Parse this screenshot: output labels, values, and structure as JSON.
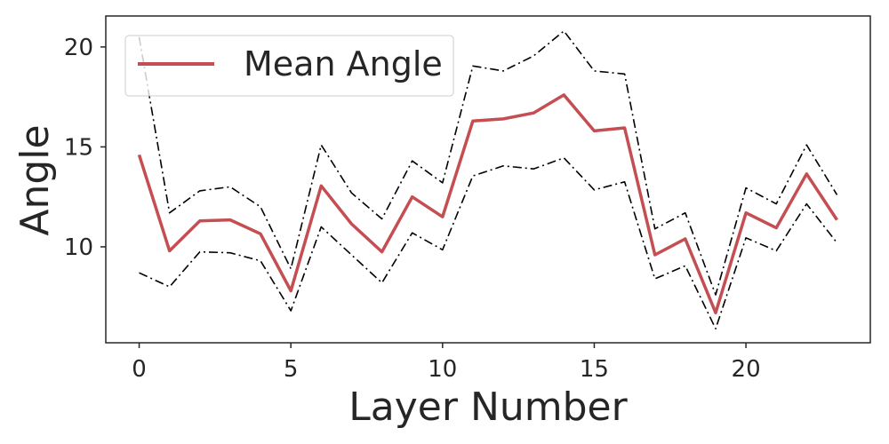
{
  "chart_data": {
    "type": "line",
    "title": "",
    "xlabel": "Layer Number",
    "ylabel": "Angle",
    "xlim": [
      -1.1,
      24.1
    ],
    "ylim": [
      5.2,
      21.55
    ],
    "xticks": [
      0,
      5,
      10,
      15,
      20
    ],
    "yticks": [
      10,
      15,
      20
    ],
    "grid": false,
    "legend": {
      "position": "top-left",
      "entries": [
        "Mean Angle"
      ]
    },
    "x": [
      0,
      1,
      2,
      3,
      4,
      5,
      6,
      7,
      8,
      9,
      10,
      11,
      12,
      13,
      14,
      15,
      16,
      17,
      18,
      19,
      20,
      21,
      22,
      23
    ],
    "series": [
      {
        "name": "Mean Angle",
        "color": "#c44e52",
        "style": "solid",
        "values": [
          14.6,
          9.8,
          11.3,
          11.35,
          10.65,
          7.8,
          13.05,
          11.15,
          9.75,
          12.5,
          11.5,
          16.3,
          16.4,
          16.7,
          17.6,
          15.8,
          15.95,
          9.6,
          10.4,
          6.7,
          11.7,
          10.95,
          13.65,
          11.35
        ]
      },
      {
        "name": "",
        "color": "#000000",
        "style": "dash-dot",
        "values": [
          20.5,
          11.7,
          12.8,
          13.0,
          12.0,
          8.9,
          15.1,
          12.7,
          11.4,
          14.3,
          13.2,
          19.05,
          18.8,
          19.55,
          20.8,
          18.8,
          18.65,
          10.9,
          11.7,
          7.6,
          12.95,
          12.15,
          15.1,
          12.6
        ]
      },
      {
        "name": "",
        "color": "#000000",
        "style": "dash-dot",
        "values": [
          8.7,
          8.0,
          9.75,
          9.7,
          9.3,
          6.8,
          11.0,
          9.6,
          8.2,
          10.7,
          9.85,
          13.55,
          14.05,
          13.9,
          14.45,
          12.85,
          13.25,
          8.4,
          9.05,
          5.9,
          10.45,
          9.8,
          12.15,
          10.2
        ]
      }
    ]
  }
}
